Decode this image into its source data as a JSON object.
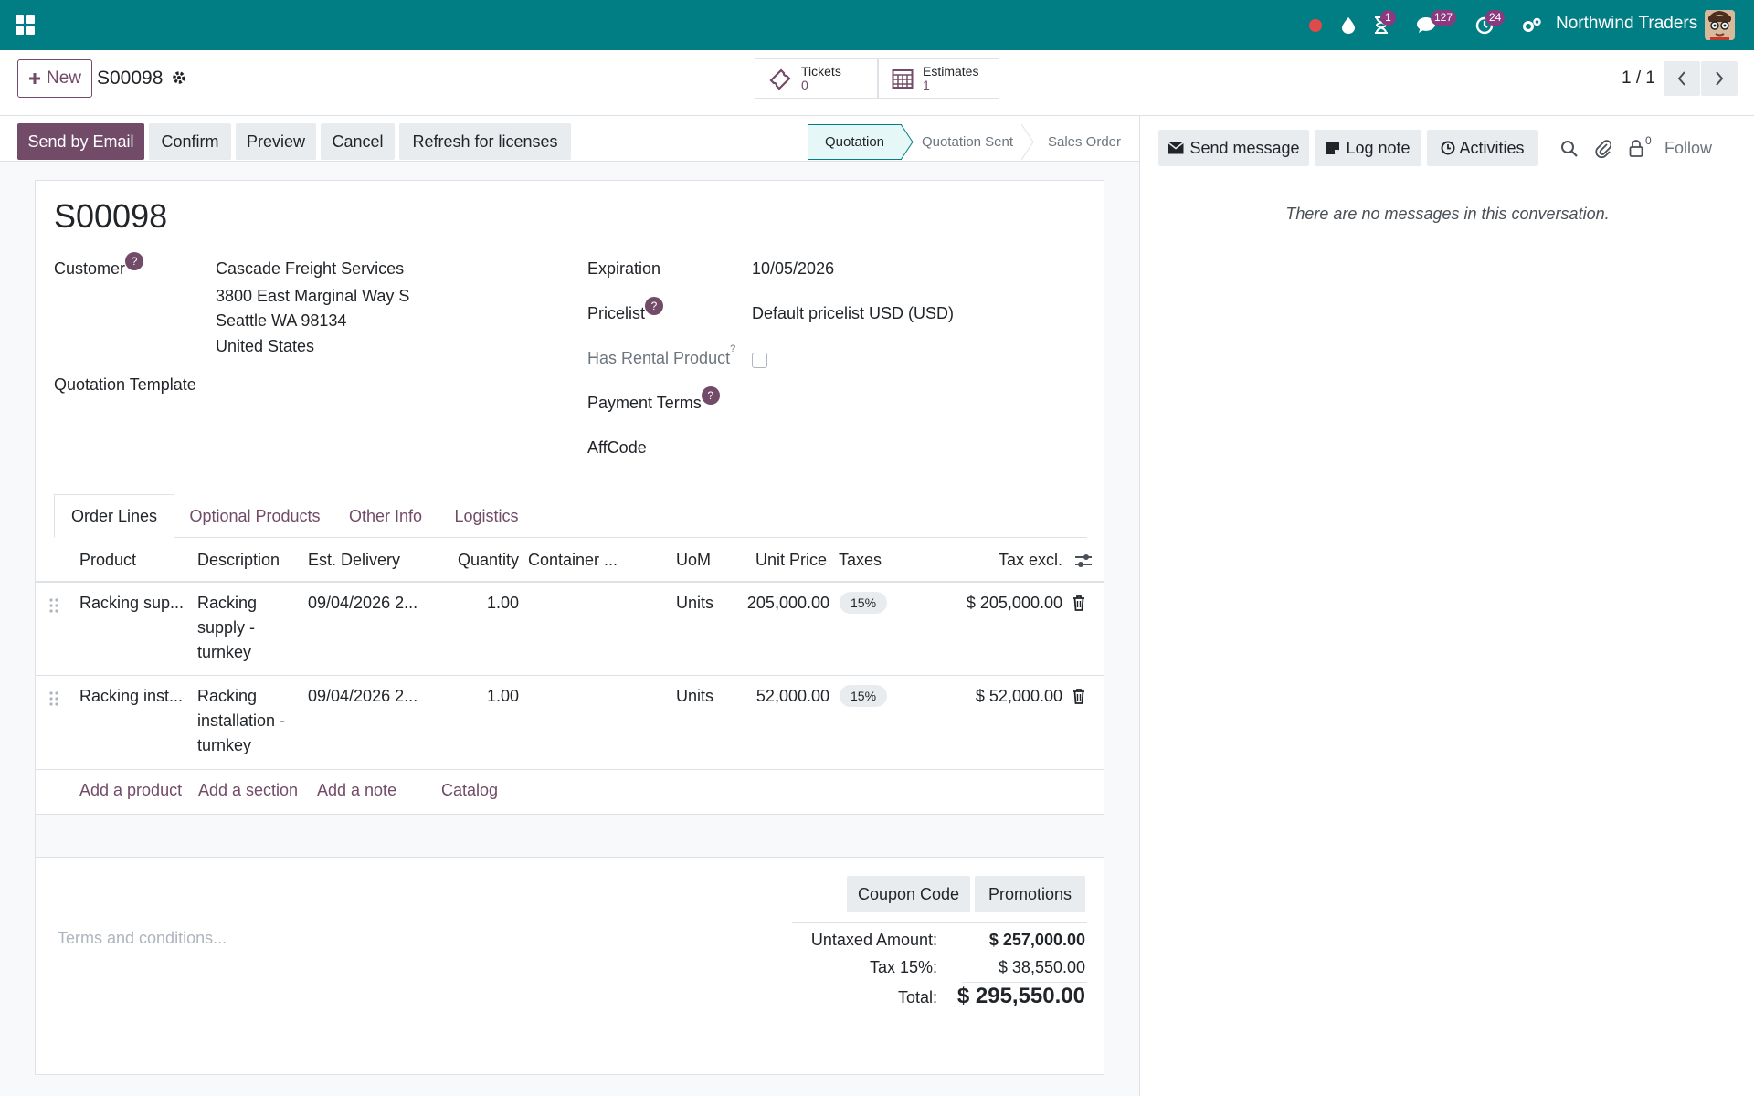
{
  "topbar": {
    "company": "Northwind Traders",
    "badges": {
      "activities": "1",
      "messages": "127",
      "clock": "24"
    },
    "icons": [
      "apps-icon",
      "record-icon",
      "droplet-icon",
      "hourglass-icon",
      "chat-icon",
      "clock-icon",
      "settings-icon"
    ],
    "colors": {
      "bar": "#017e84",
      "badge": "#8b3a7f"
    }
  },
  "control_panel": {
    "new_label": "New",
    "record_name": "S00098",
    "smart_buttons": [
      {
        "label": "Tickets",
        "value": "0"
      },
      {
        "label": "Estimates",
        "value": "1"
      }
    ],
    "pager": "1 / 1"
  },
  "statusbar": {
    "buttons": [
      "Send by Email",
      "Confirm",
      "Preview",
      "Cancel",
      "Refresh for licenses"
    ],
    "stages": [
      "Quotation",
      "Quotation Sent",
      "Sales Order"
    ],
    "active_stage": "Quotation"
  },
  "form": {
    "title": "S00098",
    "customer_label": "Customer",
    "customer_lines": [
      "Cascade Freight Services",
      "3800 East Marginal Way S",
      "Seattle WA 98134",
      "United States"
    ],
    "quotation_template_label": "Quotation Template",
    "expiration_label": "Expiration",
    "expiration_value": "10/05/2026",
    "pricelist_label": "Pricelist",
    "pricelist_value": "Default pricelist USD  (USD)",
    "rental_label": "Has Rental Product",
    "payment_terms_label": "Payment Terms",
    "affcode_label": "AffCode",
    "help_mark": "?"
  },
  "tabs": [
    "Order Lines",
    "Optional Products",
    "Other Info",
    "Logistics"
  ],
  "table": {
    "headers": [
      "Product",
      "Description",
      "Est. Delivery",
      "Quantity",
      "Container ...",
      "UoM",
      "Unit Price",
      "Taxes",
      "Tax excl."
    ],
    "rows": [
      {
        "product": "Racking sup...",
        "description": [
          "Racking",
          "supply -",
          "turnkey"
        ],
        "delivery": "09/04/2026 2...",
        "quantity": "1.00",
        "uom": "Units",
        "unit_price": "205,000.00",
        "tax": "15%",
        "subtotal": "$ 205,000.00"
      },
      {
        "product": "Racking inst...",
        "description": [
          "Racking",
          "installation -",
          "turnkey"
        ],
        "delivery": "09/04/2026 2...",
        "quantity": "1.00",
        "uom": "Units",
        "unit_price": "52,000.00",
        "tax": "15%",
        "subtotal": "$ 52,000.00"
      }
    ],
    "add_links": [
      "Add a product",
      "Add a section",
      "Add a note",
      "Catalog"
    ]
  },
  "footer": {
    "coupon": "Coupon Code",
    "promotions": "Promotions",
    "terms_placeholder": "Terms and conditions...",
    "untaxed_label": "Untaxed Amount:",
    "untaxed_value": "$ 257,000.00",
    "tax_label": "Tax 15%:",
    "tax_value": "$ 38,550.00",
    "total_label": "Total:",
    "total_value": "$ 295,550.00"
  },
  "chatter": {
    "send_message": "Send message",
    "log_note": "Log note",
    "activities": "Activities",
    "followers_count": "0",
    "follow": "Follow",
    "empty": "There are no messages in this conversation."
  }
}
